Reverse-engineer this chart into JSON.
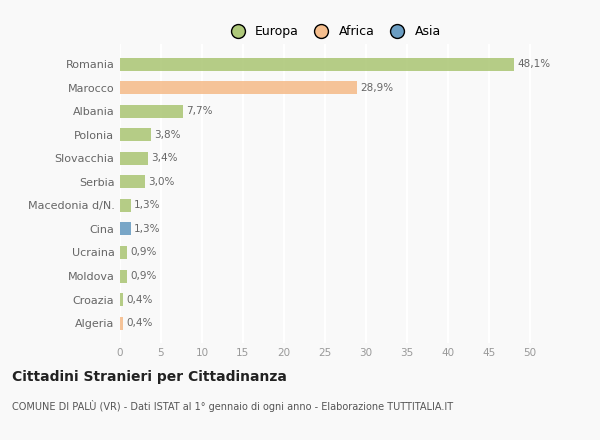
{
  "categories": [
    "Romania",
    "Marocco",
    "Albania",
    "Polonia",
    "Slovacchia",
    "Serbia",
    "Macedonia d/N.",
    "Cina",
    "Ucraina",
    "Moldova",
    "Croazia",
    "Algeria"
  ],
  "values": [
    48.1,
    28.9,
    7.7,
    3.8,
    3.4,
    3.0,
    1.3,
    1.3,
    0.9,
    0.9,
    0.4,
    0.4
  ],
  "labels": [
    "48,1%",
    "28,9%",
    "7,7%",
    "3,8%",
    "3,4%",
    "3,0%",
    "1,3%",
    "1,3%",
    "0,9%",
    "0,9%",
    "0,4%",
    "0,4%"
  ],
  "colors": [
    "#aec87a",
    "#f5be8e",
    "#aec87a",
    "#aec87a",
    "#aec87a",
    "#aec87a",
    "#aec87a",
    "#6b9dc2",
    "#aec87a",
    "#aec87a",
    "#aec87a",
    "#f5be8e"
  ],
  "legend_labels": [
    "Europa",
    "Africa",
    "Asia"
  ],
  "legend_colors": [
    "#aec87a",
    "#f5be8e",
    "#6b9dc2"
  ],
  "title": "Cittadini Stranieri per Cittadinanza",
  "subtitle": "COMUNE DI PALÙ (VR) - Dati ISTAT al 1° gennaio di ogni anno - Elaborazione TUTTITALIA.IT",
  "xlim": [
    0,
    52
  ],
  "xticks": [
    0,
    5,
    10,
    15,
    20,
    25,
    30,
    35,
    40,
    45,
    50
  ],
  "background_color": "#f9f9f9",
  "grid_color": "#ffffff",
  "bar_height": 0.55
}
